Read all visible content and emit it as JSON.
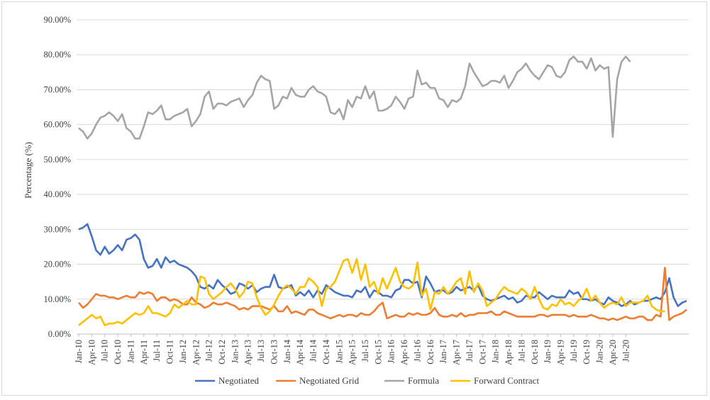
{
  "chart_data": {
    "type": "line",
    "title": "",
    "xlabel": "",
    "ylabel": "Percentage (%)",
    "ylim": [
      0,
      90
    ],
    "yticks": [
      "0.00%",
      "10.00%",
      "20.00%",
      "30.00%",
      "40.00%",
      "50.00%",
      "60.00%",
      "70.00%",
      "80.00%",
      "90.00%"
    ],
    "grid": "horizontal",
    "legend_position": "bottom",
    "x_tick_labels": [
      "Jan-10",
      "Apr-10",
      "Jul-10",
      "Oct-10",
      "Jan-11",
      "Apr-11",
      "Jul-11",
      "Oct-11",
      "Jan-12",
      "Apr-12",
      "Jul-12",
      "Oct-12",
      "Jan-13",
      "Apr-13",
      "Jul-13",
      "Oct-13",
      "Jan-14",
      "Apr-14",
      "Jul-14",
      "Oct-14",
      "Jan-15",
      "Apr-15",
      "Jul-15",
      "Oct-15",
      "Jan-16",
      "Apr-16",
      "Jul-16",
      "Oct-16",
      "Jan-17",
      "Apr-17",
      "Jul-17",
      "Oct-17",
      "Jan-18",
      "Apr-18",
      "Jul-18",
      "Oct-18",
      "Jan-19",
      "Apr-19",
      "Jul-19",
      "Oct-19",
      "Jan-20",
      "Apr-20",
      "Jul-20"
    ],
    "x_start": "Jan-10",
    "x_end": "Oct-20",
    "series": [
      {
        "name": "Negotiated",
        "color": "#4472c4",
        "values": [
          30,
          30.5,
          31.5,
          28,
          24,
          22.7,
          25,
          23,
          24,
          25.5,
          24,
          27,
          27.5,
          28.5,
          27,
          21.5,
          19,
          19.5,
          21.5,
          19,
          22,
          20.5,
          21,
          20,
          19.5,
          19,
          18,
          16.5,
          13.5,
          13,
          14,
          13,
          15.5,
          14,
          13,
          11.5,
          12,
          14.5,
          14,
          13,
          14,
          12,
          13,
          13.5,
          13.5,
          17,
          13.5,
          13,
          13.5,
          14,
          11,
          12,
          11,
          12.5,
          10.5,
          12.5,
          11.5,
          14,
          13,
          12,
          11.5,
          11,
          11,
          10.5,
          12.5,
          12,
          13.5,
          10.5,
          12.5,
          12,
          11,
          11,
          10.5,
          12.5,
          13,
          15.5,
          15.5,
          14.5,
          15,
          10.5,
          16.5,
          14.5,
          12,
          12.5,
          12.5,
          11.5,
          12,
          13.5,
          12.5,
          13,
          13.5,
          12.5,
          14,
          11,
          10,
          9.5,
          10,
          10.5,
          11,
          10,
          10.5,
          9,
          9.5,
          11,
          10.5,
          10.5,
          12,
          11,
          10,
          11,
          10.5,
          10.5,
          10.5,
          12.5,
          11.5,
          12,
          10,
          10,
          9.5,
          10,
          9,
          8.5,
          10.5,
          9.5,
          9,
          8,
          8.5,
          9.5,
          8.5,
          9,
          9.5,
          9.5,
          10,
          10.5,
          10,
          12,
          16,
          10.5,
          8,
          9,
          9.5
        ]
      },
      {
        "name": "Negotiated Grid",
        "color": "#ed7d31",
        "values": [
          9,
          7.5,
          8.5,
          10,
          11.5,
          11,
          11,
          10.5,
          10.5,
          10,
          10.5,
          11,
          10.5,
          10.5,
          12,
          11.5,
          12,
          11.5,
          9.5,
          10.5,
          10.5,
          9.5,
          10,
          9.5,
          8.5,
          8.5,
          10.5,
          9,
          8.5,
          7.5,
          8,
          9,
          8.5,
          8.5,
          9,
          8.5,
          8,
          7,
          7.5,
          7,
          8,
          8,
          8,
          7.5,
          7,
          8,
          6.5,
          6.5,
          8,
          6,
          6.5,
          6,
          5.5,
          7,
          7,
          6,
          5.5,
          5,
          4.5,
          5,
          5.5,
          5,
          5.5,
          5.5,
          5,
          6,
          5.5,
          5.5,
          6.5,
          8,
          9,
          4.5,
          5,
          5.5,
          5,
          5,
          6,
          5.5,
          6,
          5.5,
          5.5,
          6,
          7.5,
          5.5,
          5,
          5,
          5.5,
          5,
          6,
          5,
          5.5,
          5.5,
          6,
          6,
          6,
          6.5,
          5.5,
          5.5,
          6.5,
          6,
          5.5,
          5,
          5,
          5,
          5,
          5,
          5.5,
          5.5,
          5,
          5.5,
          5.5,
          5.5,
          5.5,
          5,
          5.5,
          5,
          5,
          5,
          5.5,
          5,
          4.5,
          4.5,
          4,
          4.5,
          4,
          4.5,
          5,
          4.5,
          4.5,
          5,
          5,
          4,
          4,
          5.5,
          5,
          19,
          4,
          5,
          5.5,
          6,
          7
        ]
      },
      {
        "name": "Formula",
        "color": "#a5a5a5",
        "values": [
          59,
          58,
          56,
          57.5,
          60,
          62,
          62.5,
          63.5,
          62.5,
          61,
          63,
          59,
          58,
          56,
          56,
          59.5,
          63.5,
          63,
          64,
          65.5,
          61.5,
          61.5,
          62.5,
          63,
          63.5,
          64.5,
          59.5,
          61,
          63,
          68,
          69.5,
          64.5,
          66,
          66,
          65.5,
          66.5,
          67,
          67.5,
          65,
          67,
          68.5,
          72,
          74,
          73,
          72.5,
          64.5,
          65.5,
          68,
          67.5,
          70.5,
          68.5,
          68,
          68,
          70,
          71,
          69.5,
          69,
          68,
          63.5,
          63,
          64.5,
          61.5,
          67,
          65,
          68,
          67.5,
          71,
          67.5,
          69.5,
          64,
          64,
          64.5,
          65.5,
          68,
          66.5,
          64.5,
          67.5,
          68,
          75.5,
          71.5,
          72,
          70.5,
          70.5,
          67.5,
          67,
          65,
          67,
          66.5,
          67.5,
          71,
          77.5,
          75,
          73,
          71,
          71.5,
          72.5,
          72.5,
          72,
          74,
          70.5,
          72.5,
          75,
          76,
          77.5,
          75.5,
          74,
          73,
          75,
          77,
          76.5,
          74,
          73.5,
          75,
          78.5,
          79.5,
          78,
          78,
          76,
          79,
          75.5,
          77,
          76,
          76.5,
          56.5,
          73,
          78,
          79.5,
          78
        ]
      },
      {
        "name": "Forward Contract",
        "color": "#ffc000",
        "values": [
          2.5,
          3.5,
          4.5,
          5.5,
          4.5,
          5,
          2.5,
          3,
          3,
          3.5,
          3,
          4,
          5,
          6,
          5.5,
          6,
          8,
          6,
          6,
          5.5,
          5,
          6,
          8.5,
          7.5,
          8.5,
          9.5,
          8.5,
          8.5,
          16.5,
          16,
          11.5,
          10,
          11,
          12,
          13.5,
          14.5,
          13,
          10.5,
          12,
          15,
          14.5,
          10.5,
          7.5,
          5.5,
          6.5,
          8.5,
          11,
          13,
          14,
          13,
          11.5,
          13.5,
          13.5,
          16,
          15,
          13.5,
          8,
          13,
          13.5,
          15,
          18,
          21,
          21.5,
          17.5,
          21.5,
          15.5,
          20,
          13.5,
          15,
          11.5,
          16,
          13,
          16,
          19,
          15,
          13.5,
          13,
          14,
          20.5,
          11,
          13,
          7,
          12,
          11.5,
          13.5,
          11.5,
          13,
          15,
          16,
          11.5,
          18,
          12,
          14.5,
          12.5,
          8,
          9,
          10,
          12,
          13.5,
          12.5,
          12,
          11.5,
          13,
          12,
          10,
          13.5,
          10,
          7.5,
          7,
          8.5,
          8,
          10,
          8.5,
          9,
          8,
          9.5,
          10.5,
          13,
          9.5,
          11,
          9,
          7.5,
          8.5,
          9,
          8.5,
          10.5,
          8,
          9,
          9,
          9,
          9.5,
          11,
          8,
          7,
          6.5,
          6.5
        ]
      }
    ]
  }
}
